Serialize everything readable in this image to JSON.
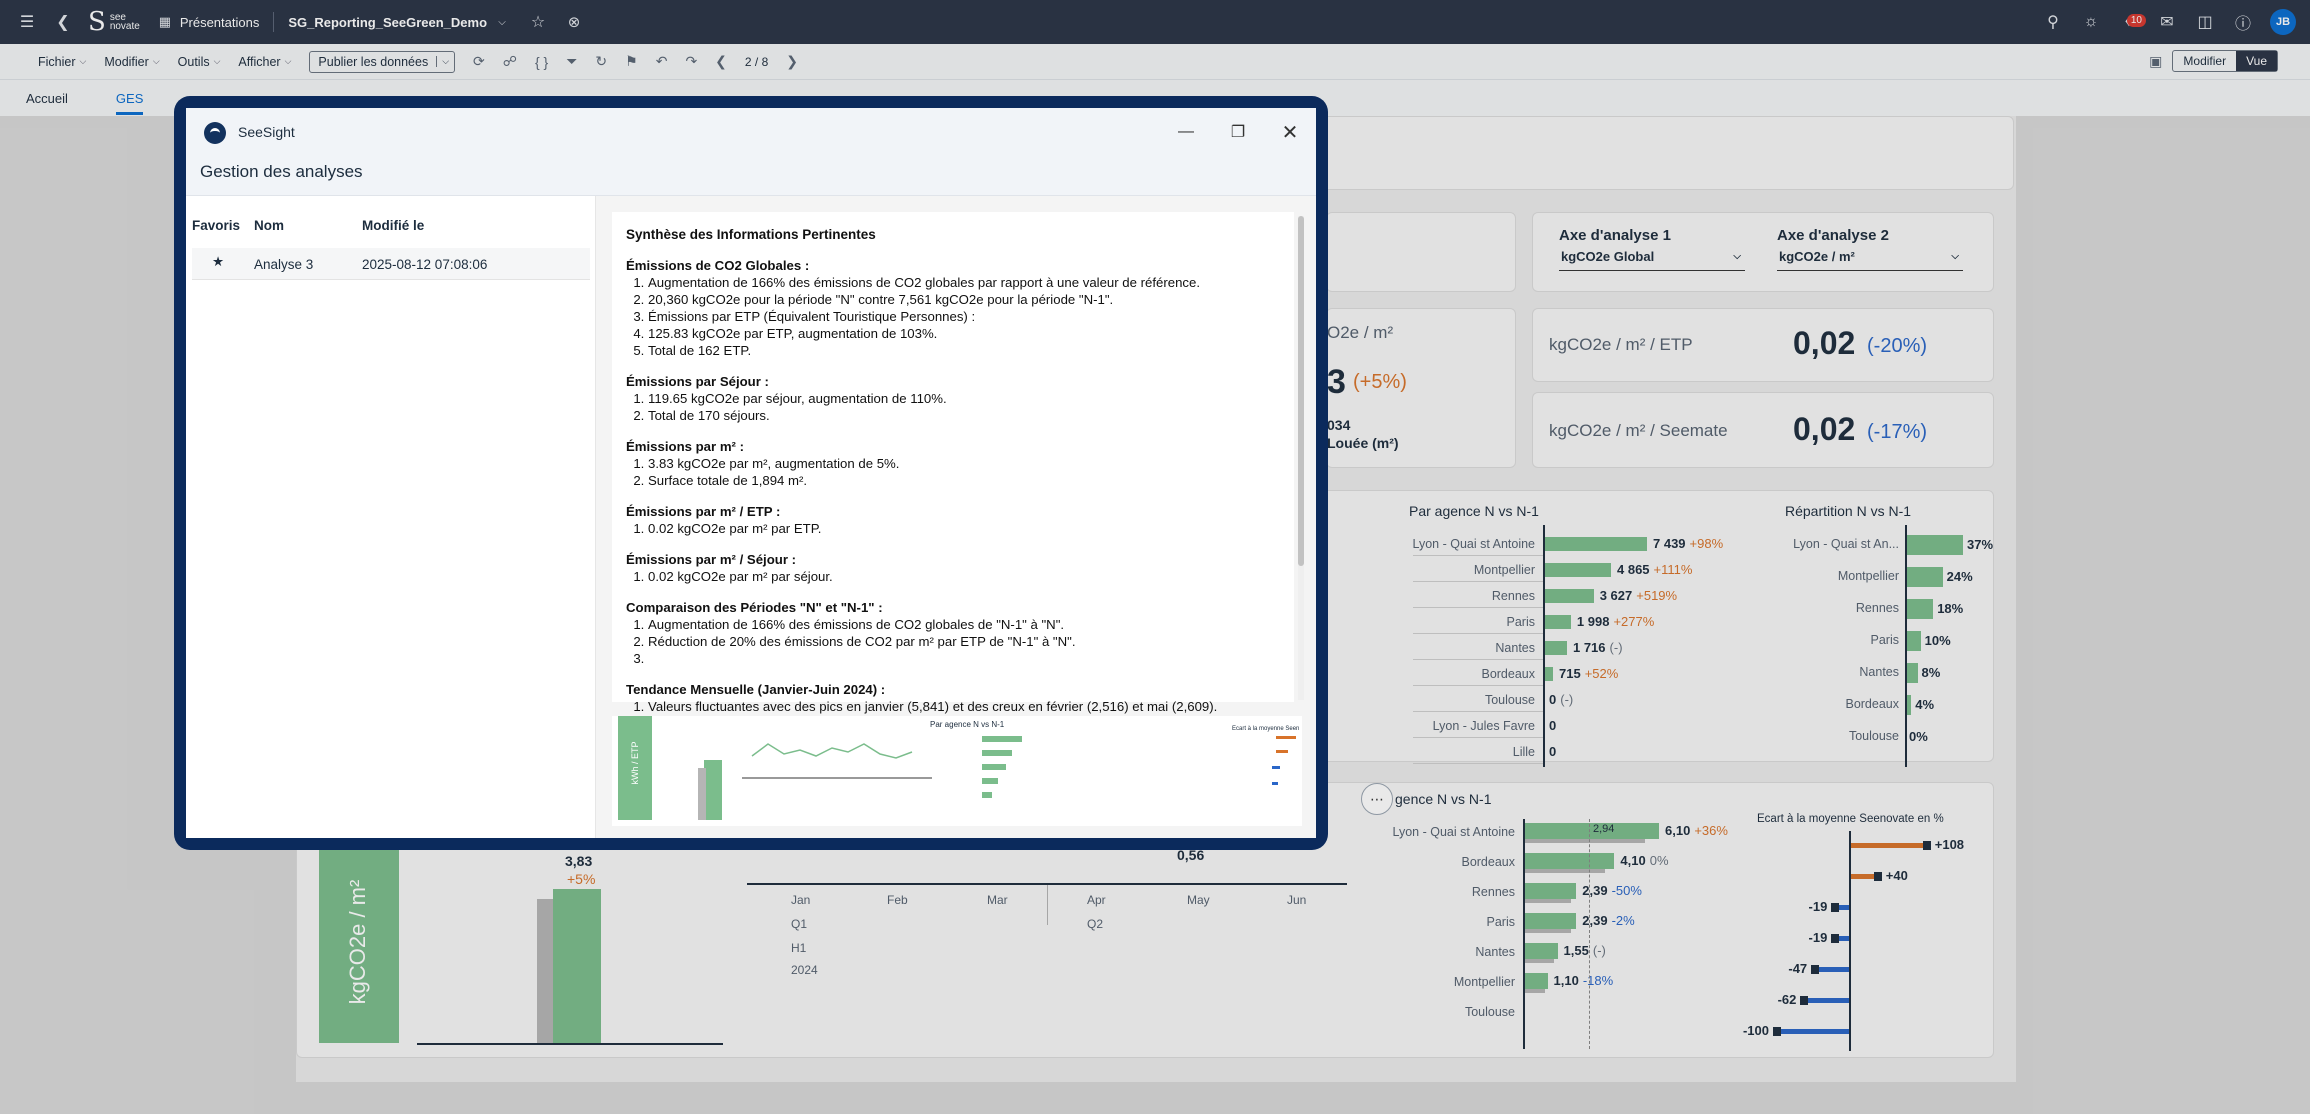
{
  "shell": {
    "presentations_label": "Présentations",
    "doc_title": "SG_Reporting_SeeGreen_Demo",
    "logo_text_1": "see",
    "logo_text_2": "novate",
    "notif_count": "10",
    "avatar": "JB"
  },
  "toolbar": {
    "menus": [
      "Fichier",
      "Modifier",
      "Outils",
      "Afficher"
    ],
    "publish_label": "Publier les données",
    "page_indicator": "2 / 8",
    "edit_label": "Modifier",
    "view_label": "Vue"
  },
  "tabs": {
    "accueil": "Accueil",
    "ges": "GES"
  },
  "dashboard": {
    "axe1_title": "Axe d'analyse 1",
    "axe1_value": "kgCO2e Global",
    "axe2_title": "Axe d'analyse 2",
    "axe2_value": "kgCO2e / m²",
    "card_m2_label": "O2e / m²",
    "card_m2_pct": "(+5%)",
    "card_m2_digit": "3",
    "card_m2_sub1": "034",
    "card_m2_sub2": "Louée (m²)",
    "kpi_etp_label": "kgCO2e / m² / ETP",
    "kpi_etp_value": "0,02",
    "kpi_etp_pct": "(-20%)",
    "kpi_seemate_label": "kgCO2e / m² / Seemate",
    "kpi_seemate_value": "0,02",
    "kpi_seemate_pct": "(-17%)",
    "agence_title": "Par agence N vs N-1",
    "agence": [
      {
        "name": "Lyon - Quai st Antoine",
        "value": "7 439",
        "delta": "+98%",
        "n": 7439
      },
      {
        "name": "Montpellier",
        "value": "4 865",
        "delta": "+111%",
        "n": 4865
      },
      {
        "name": "Rennes",
        "value": "3 627",
        "delta": "+519%",
        "n": 3627
      },
      {
        "name": "Paris",
        "value": "1 998",
        "delta": "+277%",
        "n": 1998
      },
      {
        "name": "Nantes",
        "value": "1 716",
        "delta": "(-)",
        "n": 1716
      },
      {
        "name": "Bordeaux",
        "value": "715",
        "delta": "+52%",
        "n": 715
      },
      {
        "name": "Toulouse",
        "value": "0",
        "delta": "(-)",
        "n": 0
      },
      {
        "name": "Lyon - Jules Favre",
        "value": "0",
        "delta": "",
        "n": 0
      },
      {
        "name": "Lille",
        "value": "0",
        "delta": "",
        "n": 0
      }
    ],
    "repartition_title": "Répartition N vs N-1",
    "repartition": [
      {
        "name": "Lyon - Quai st An...",
        "value": "37%",
        "n": 37
      },
      {
        "name": "Montpellier",
        "value": "24%",
        "n": 24
      },
      {
        "name": "Rennes",
        "value": "18%",
        "n": 18
      },
      {
        "name": "Paris",
        "value": "10%",
        "n": 10
      },
      {
        "name": "Nantes",
        "value": "8%",
        "n": 8
      },
      {
        "name": "Bordeaux",
        "value": "4%",
        "n": 4
      },
      {
        "name": "Toulouse",
        "value": "0%",
        "n": 0
      }
    ],
    "agence2_title": "gence N vs N-1",
    "agence2": [
      {
        "name": "Lyon - Quai st Antoine",
        "value": "6,10",
        "delta": "+36%",
        "prev": "2,94",
        "n": 6.1
      },
      {
        "name": "Bordeaux",
        "value": "4,10",
        "delta": "0%",
        "n": 4.1
      },
      {
        "name": "Rennes",
        "value": "2,39",
        "delta": "-50%",
        "n": 2.39
      },
      {
        "name": "Paris",
        "value": "2,39",
        "delta": "-2%",
        "n": 2.39
      },
      {
        "name": "Nantes",
        "value": "1,55",
        "delta": "(-)",
        "n": 1.55
      },
      {
        "name": "Montpellier",
        "value": "1,10",
        "delta": "-18%",
        "n": 1.1
      },
      {
        "name": "Toulouse",
        "value": "",
        "delta": "",
        "n": 0
      }
    ],
    "ecart_title": "Ecart à la moyenne Seenovate en %",
    "ecart": [
      {
        "value": "+108",
        "n": 108
      },
      {
        "value": "+40",
        "n": 40
      },
      {
        "value": "-19",
        "n": -19
      },
      {
        "value": "-19",
        "n": -19
      },
      {
        "value": "-47",
        "n": -47
      },
      {
        "value": "-62",
        "n": -62
      },
      {
        "value": "-100",
        "n": -100
      }
    ],
    "bottom_vertical_label": "kgCO2e / m²",
    "bottom_bar_value": "3,83",
    "bottom_bar_pct": "+5%",
    "line_point_label": "0,56",
    "months": [
      "Jan",
      "Feb",
      "Mar",
      "Apr",
      "May",
      "Jun"
    ],
    "quarters": [
      "Q1",
      "Q2"
    ],
    "half": "H1",
    "year": "2024"
  },
  "dialog": {
    "app_name": "SeeSight",
    "title": "Gestion des analyses",
    "col_favoris": "Favoris",
    "col_nom": "Nom",
    "col_modifie": "Modifié le",
    "row_name": "Analyse 3",
    "row_date": "2025-08-12 07:08:06",
    "summary_title": "Synthèse des Informations Pertinentes",
    "sections": [
      {
        "title": "Émissions de CO2 Globales :",
        "items": [
          "Augmentation de 166% des émissions de CO2 globales par rapport à une valeur de référence.",
          "20,360 kgCO2e pour la période \"N\" contre 7,561 kgCO2e pour la période \"N-1\".",
          "Émissions par ETP (Équivalent Touristique Personnes) :",
          "125.83 kgCO2e par ETP, augmentation de 103%.",
          "Total de 162 ETP."
        ]
      },
      {
        "title": "Émissions par Séjour :",
        "items": [
          "119.65 kgCO2e par séjour, augmentation de 110%.",
          "Total de 170 séjours."
        ]
      },
      {
        "title": "Émissions par m² :",
        "items": [
          "3.83 kgCO2e par m², augmentation de 5%.",
          "Surface totale de 1,894 m²."
        ]
      },
      {
        "title": "Émissions par m² / ETP :",
        "items": [
          "0.02 kgCO2e par m² par ETP."
        ]
      },
      {
        "title": "Émissions par m² / Séjour :",
        "items": [
          "0.02 kgCO2e par m² par séjour."
        ]
      },
      {
        "title": "Comparaison des Périodes \"N\" et \"N-1\" :",
        "items": [
          "Augmentation de 166% des émissions de CO2 globales de \"N-1\" à \"N\".",
          "Réduction de 20% des émissions de CO2 par m² par ETP de \"N-1\" à \"N\".",
          ""
        ]
      },
      {
        "title": "Tendance Mensuelle (Janvier-Juin 2024) :",
        "items": [
          "Valeurs fluctuantes avec des pics en janvier (5,841) et des creux en février (2,516) et mai (2,609)."
        ]
      }
    ],
    "thumb_label": "kWh / ETP",
    "thumb_title": "Par agence N vs N-1",
    "thumb_subtitle": "Ecart à la moyenne Seen"
  }
}
